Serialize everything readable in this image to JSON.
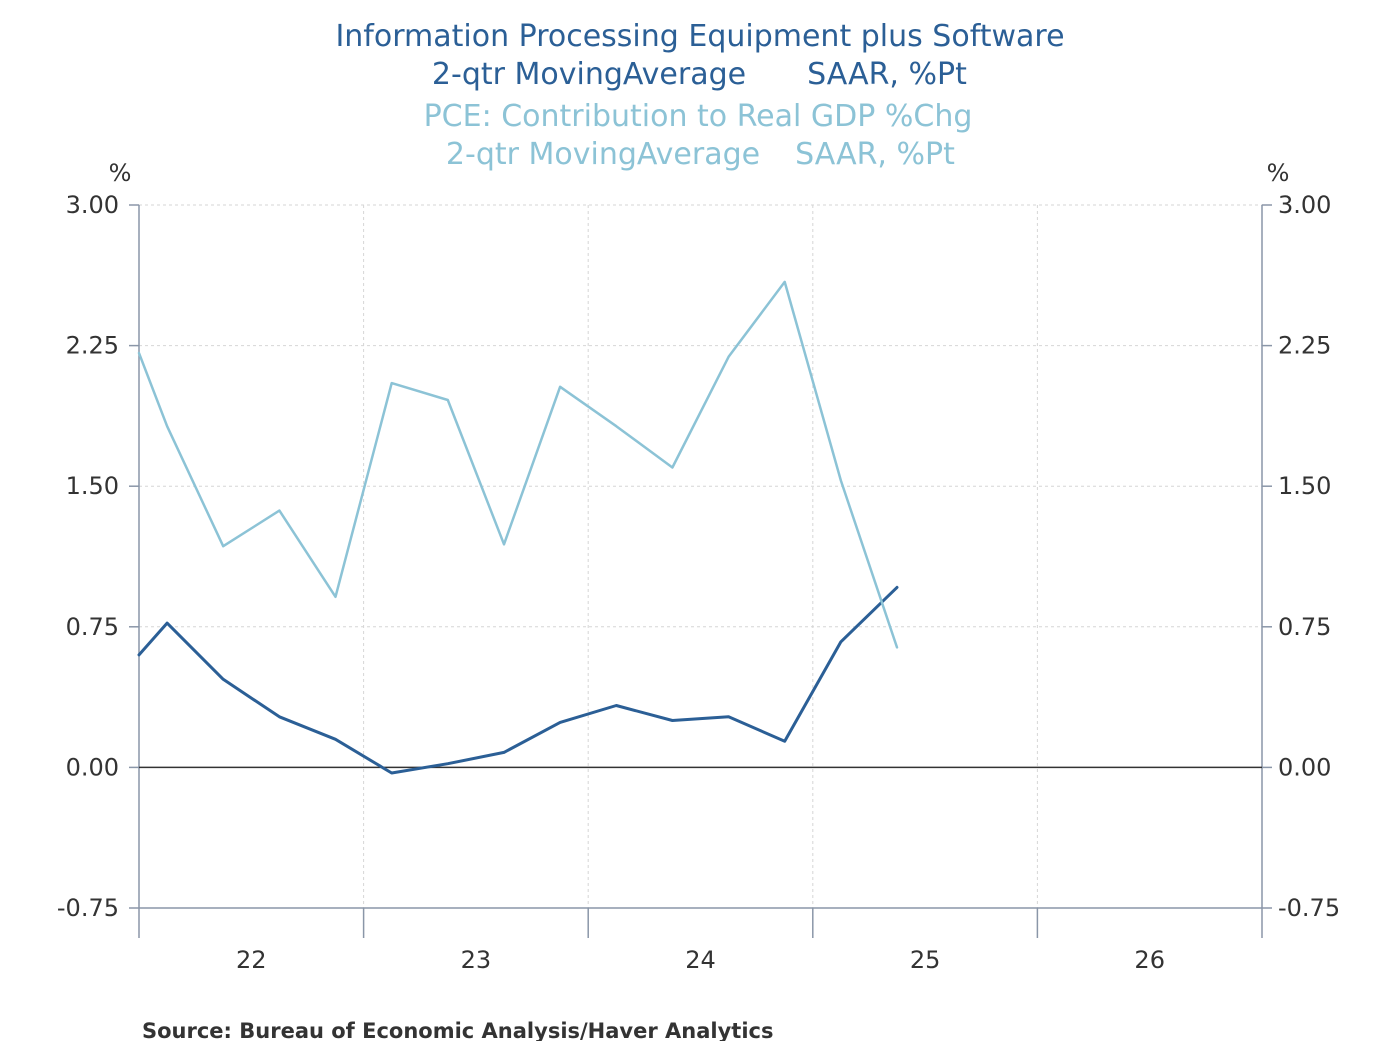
{
  "chart_data": {
    "type": "line",
    "title": [
      "Information Processing Equipment plus Software",
      "2-qtr MovingAverage",
      "SAAR, %Pt",
      "PCE: Contribution to Real GDP %Chg",
      "2-qtr MovingAverage",
      "SAAR, %Pt"
    ],
    "ylabel_left": "%",
    "ylabel_right": "%",
    "yticks": [
      "3.00",
      "2.25",
      "1.50",
      "0.75",
      "0.00",
      "-0.75"
    ],
    "ytick_values": [
      3.0,
      2.25,
      1.5,
      0.75,
      0.0,
      -0.75
    ],
    "ylim": [
      -0.75,
      3.0
    ],
    "xticks": [
      "22",
      "23",
      "24",
      "25",
      "26"
    ],
    "xlim": [
      2021.5,
      2026.5
    ],
    "grid": true,
    "series": [
      {
        "color": "#2b5f96",
        "x": [
          2021.5,
          2021.625,
          2021.875,
          2022.125,
          2022.375,
          2022.625,
          2022.875,
          2023.125,
          2023.375,
          2023.625,
          2023.875,
          2024.125,
          2024.375,
          2024.625,
          2024.875
        ],
        "values": [
          0.6,
          0.77,
          0.47,
          0.27,
          0.15,
          -0.03,
          0.02,
          0.08,
          0.24,
          0.33,
          0.25,
          0.27,
          0.14,
          0.67,
          0.96
        ]
      },
      {
        "color": "#8cc3d6",
        "x": [
          2021.5,
          2021.625,
          2021.875,
          2022.125,
          2022.375,
          2022.625,
          2022.875,
          2023.125,
          2023.375,
          2023.625,
          2023.875,
          2024.125,
          2024.375,
          2024.625,
          2024.875
        ],
        "values": [
          2.21,
          1.82,
          1.18,
          1.37,
          0.91,
          2.05,
          1.96,
          1.19,
          2.03,
          1.82,
          1.6,
          2.19,
          2.59,
          1.53,
          0.64
        ]
      }
    ],
    "source": "Source:  Bureau of Economic Analysis/Haver Analytics"
  }
}
